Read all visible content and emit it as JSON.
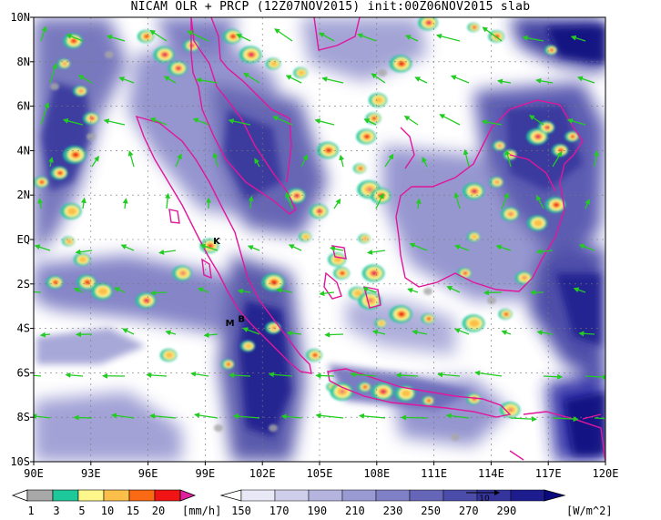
{
  "title": "NICAM OLR + PRCP (12Z07NOV2015) init:00Z06NOV2015 slab",
  "map": {
    "lon_labels": [
      "90E",
      "93E",
      "96E",
      "99E",
      "102E",
      "105E",
      "108E",
      "111E",
      "114E",
      "117E",
      "120E"
    ],
    "lat_labels": [
      "10N",
      "8N",
      "6N",
      "4N",
      "2N",
      "EQ",
      "2S",
      "4S",
      "6S",
      "8S",
      "10S"
    ],
    "place_markers": [
      {
        "label": "K",
        "lon": 99.6,
        "lat": -0.2
      },
      {
        "label": "M",
        "lon": 100.3,
        "lat": -3.9
      },
      {
        "label": "B",
        "lon": 100.9,
        "lat": -3.7
      }
    ],
    "colors": {
      "coast": "#e0179b",
      "wind": "#22cc22",
      "grid": "#666666"
    }
  },
  "precip_colorbar": {
    "labels": [
      "1",
      "3",
      "5",
      "10",
      "15",
      "20"
    ],
    "unit": "[mm/h]",
    "colors": [
      "#a8a8a8",
      "#1dc99b",
      "#fff68c",
      "#fbbf4a",
      "#fa6a14",
      "#f01414",
      "#e01ea0"
    ]
  },
  "olr_colorbar": {
    "labels": [
      "150",
      "170",
      "190",
      "210",
      "230",
      "250",
      "270",
      "290"
    ],
    "unit": "[W/m^2]",
    "vector_ref": "10",
    "colors": [
      "#ffffff",
      "#e8e8f6",
      "#cfcfeb",
      "#b4b4df",
      "#9a9ad2",
      "#8080c6",
      "#6666b8",
      "#4c4caa",
      "#34349c",
      "#1c1c8e",
      "#0a0a7e"
    ]
  }
}
